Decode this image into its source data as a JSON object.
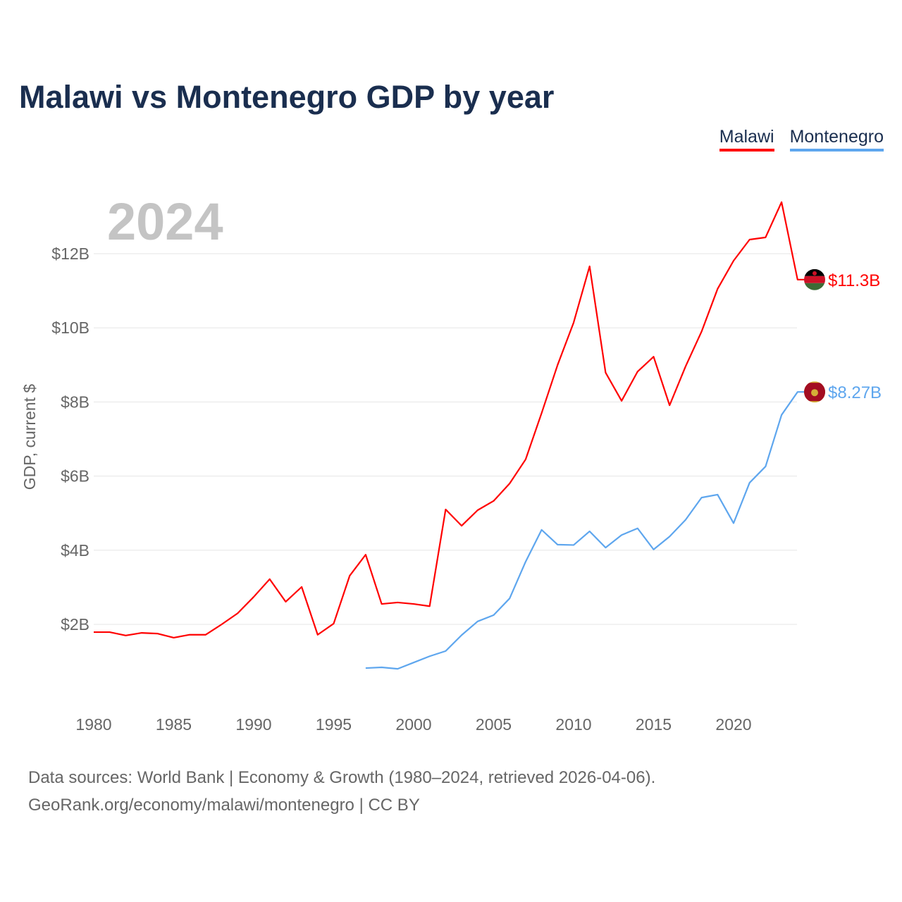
{
  "title": "Malawi vs Montenegro GDP by year",
  "year_label": "2024",
  "source_line1": "Data sources: World Bank | Economy & Growth (1980–2024, retrieved 2026-04-06).",
  "source_line2": "GeoRank.org/economy/malawi/montenegro | CC BY",
  "chart_data": {
    "type": "line",
    "title": "Malawi vs Montenegro GDP by year",
    "xlabel": "",
    "ylabel": "GDP, current $",
    "xlim": [
      1980,
      2024
    ],
    "ylim": [
      0,
      14
    ],
    "x_ticks": [
      1980,
      1985,
      1990,
      1995,
      2000,
      2005,
      2010,
      2015,
      2020
    ],
    "y_ticks": [
      {
        "v": 2,
        "label": "$2B"
      },
      {
        "v": 4,
        "label": "$4B"
      },
      {
        "v": 6,
        "label": "$6B"
      },
      {
        "v": 8,
        "label": "$8B"
      },
      {
        "v": 10,
        "label": "$10B"
      },
      {
        "v": 12,
        "label": "$12B"
      }
    ],
    "legend_position": "top-right",
    "series": [
      {
        "name": "Malawi",
        "color": "#ff0000",
        "end_label": "$11.3B",
        "flag": "malawi-flag",
        "start": 1980,
        "values": [
          1.79,
          1.79,
          1.7,
          1.77,
          1.75,
          1.64,
          1.72,
          1.72,
          2.0,
          2.3,
          2.74,
          3.22,
          2.61,
          3.01,
          1.72,
          2.02,
          3.31,
          3.88,
          2.55,
          2.59,
          2.55,
          2.49,
          5.1,
          4.66,
          5.08,
          5.33,
          5.8,
          6.45,
          7.7,
          9.0,
          10.14,
          11.66,
          8.79,
          8.03,
          8.82,
          9.22,
          7.91,
          8.96,
          9.9,
          11.05,
          11.81,
          12.38,
          12.44,
          13.39,
          11.3
        ]
      },
      {
        "name": "Montenegro",
        "color": "#5ea6ee",
        "end_label": "$8.27B",
        "flag": "montenegro-flag",
        "start": 1997,
        "values": [
          0.82,
          0.84,
          0.8,
          0.97,
          1.14,
          1.28,
          1.71,
          2.08,
          2.25,
          2.7,
          3.69,
          4.55,
          4.15,
          4.14,
          4.51,
          4.07,
          4.41,
          4.59,
          4.02,
          4.37,
          4.82,
          5.42,
          5.5,
          4.73,
          5.82,
          6.26,
          7.65,
          8.27
        ]
      }
    ]
  }
}
